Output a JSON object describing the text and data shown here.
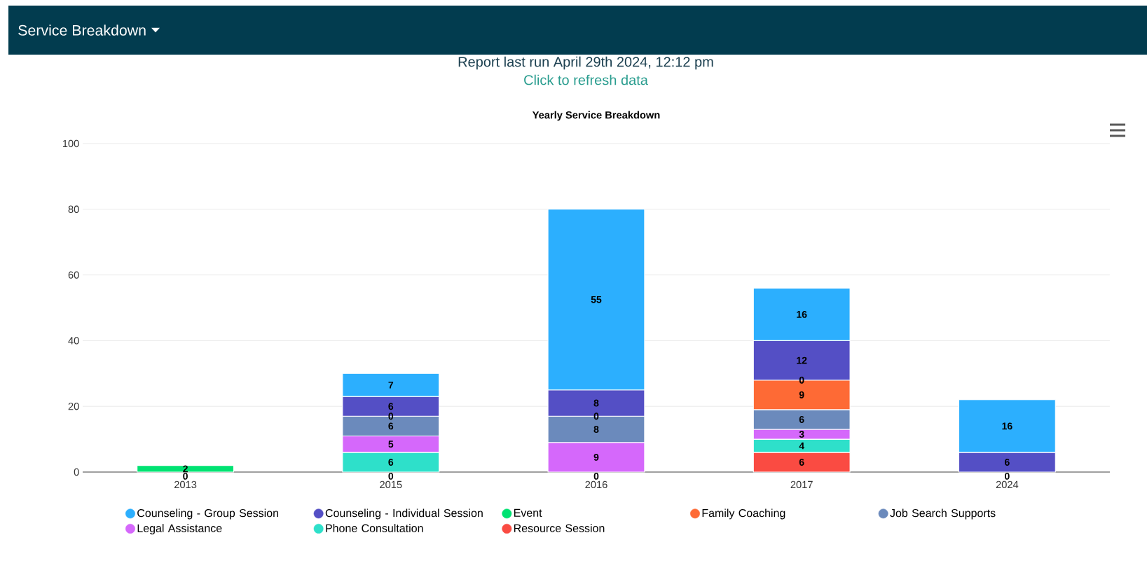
{
  "chart_data": {
    "type": "bar",
    "stacked": true,
    "title": "Yearly Service Breakdown",
    "subtitle": "Report last run April 29th 2024, 12:12 pm",
    "annotations": [
      "Service Breakdown",
      "Click to refresh data",
      {
        "text": "0",
        "x": "2013",
        "y": 0
      },
      {
        "text": "0",
        "x": "2015",
        "y": 0
      },
      {
        "text": "0",
        "x": "2015",
        "y": 17
      },
      {
        "text": "0",
        "x": "2016",
        "y": 0
      },
      {
        "text": "0",
        "x": "2016",
        "y": 17
      },
      {
        "text": "0",
        "x": "2017",
        "y": 28
      },
      {
        "text": "0",
        "x": "2024",
        "y": 0
      }
    ],
    "categories": [
      "2013",
      "2015",
      "2016",
      "2017",
      "2024"
    ],
    "series": [
      {
        "name": "Resource Session",
        "color": "#fa4b42",
        "values": [
          0,
          0,
          0,
          6,
          0
        ],
        "value_labels": [
          null,
          null,
          null,
          "6",
          null
        ]
      },
      {
        "name": "Phone Consultation",
        "color": "#2ee0ca",
        "values": [
          null,
          6,
          null,
          4,
          null
        ],
        "value_labels": [
          null,
          "6",
          null,
          "4",
          null
        ]
      },
      {
        "name": "Legal Assistance",
        "color": "#d568fb",
        "values": [
          null,
          5,
          9,
          3,
          null
        ],
        "value_labels": [
          null,
          "5",
          "9",
          "3",
          null
        ]
      },
      {
        "name": "Job Search Supports",
        "color": "#6b8abc",
        "values": [
          null,
          6,
          8,
          6,
          null
        ],
        "value_labels": [
          null,
          "6",
          "8",
          "6",
          null
        ]
      },
      {
        "name": "Family Coaching",
        "color": "#fe6a35",
        "values": [
          null,
          0,
          0,
          9,
          null
        ],
        "value_labels": [
          null,
          null,
          null,
          "9",
          null
        ]
      },
      {
        "name": "Event",
        "color": "#00e272",
        "values": [
          2,
          null,
          null,
          0,
          null
        ],
        "value_labels": [
          "2",
          null,
          null,
          null,
          null
        ]
      },
      {
        "name": "Counseling - Individual Session",
        "color": "#544fc5",
        "values": [
          null,
          6,
          8,
          12,
          6
        ],
        "value_labels": [
          null,
          "6",
          "8",
          "12",
          "6"
        ]
      },
      {
        "name": "Counseling - Group Session",
        "color": "#2caffe",
        "values": [
          null,
          7,
          55,
          16,
          16
        ],
        "value_labels": [
          null,
          "7",
          "55",
          "16",
          "16"
        ]
      }
    ],
    "ylim": [
      0,
      100
    ],
    "yticks": [
      0,
      20,
      40,
      60,
      80,
      100
    ],
    "grid": "y",
    "legend": "bottom"
  }
}
